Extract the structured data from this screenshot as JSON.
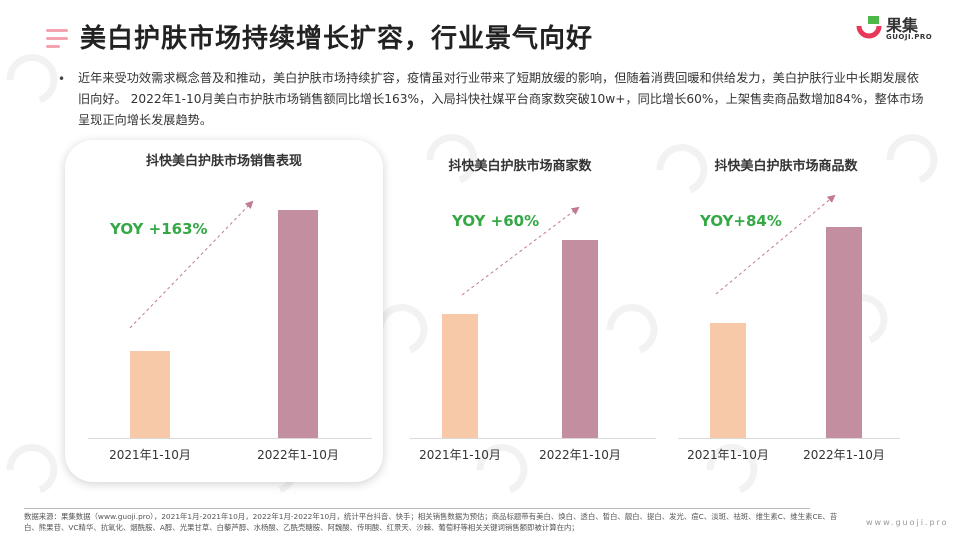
{
  "header": {
    "title": "美白护肤市场持续增长扩容，行业景气向好",
    "logo_text": "果集",
    "logo_sub": "GUOJI.PRO"
  },
  "summary": {
    "bullet": "•",
    "text": "近年来受功效需求概念普及和推动，美白护肤市场持续扩容，疫情虽对行业带来了短期放缓的影响，但随着消费回暖和供给发力，美白护肤行业中长期发展依旧向好。 2022年1-10月美白市护肤市场销售额同比增长163%，入局抖快社媒平台商家数突破10w+，同比增长60%，上架售卖商品数增加84%，整体市场呈现正向增长发展趋势。"
  },
  "colors": {
    "bar_2021": "#f7c9a9",
    "bar_2022": "#c28ea0",
    "yoy_green": "#33a845",
    "trend_arrow": "#c27a90"
  },
  "chart_data": [
    {
      "type": "bar",
      "title": "抖快美白护肤市场销售表现",
      "categories": [
        "2021年1-10月",
        "2022年1-10月"
      ],
      "values": [
        1,
        2.63
      ],
      "annotation": "YOY +163%"
    },
    {
      "type": "bar",
      "title": "抖快美白护肤市场商家数",
      "categories": [
        "2021年1-10月",
        "2022年1-10月"
      ],
      "values": [
        1,
        1.6
      ],
      "annotation": "YOY +60%"
    },
    {
      "type": "bar",
      "title": "抖快美白护肤市场商品数",
      "categories": [
        "2021年1-10月",
        "2022年1-10月"
      ],
      "values": [
        1,
        1.84
      ],
      "annotation": "YOY+84%"
    }
  ],
  "footer": {
    "source": "数据来源：果集数据（www.guoji.pro），2021年1月-2021年10月，2022年1月-2022年10月，统计平台抖音、快手；相关销售数据为预估；商品标题带有美白、焕白、透白、皙白、靓白、提白、发光、痘C、淡斑、祛斑、维生素C、维生素CE、苔白、熊果苷、VC精华、抗氧化、烟酰胺、A醇、光果甘草、白藜芦醇、水杨酸、乙酰壳糖胺、阿魏酸、传明酸、红景天、沙棘、葡萄籽等相关关键词销售额即被计算在内；",
    "site": "www.guoji.pro"
  }
}
